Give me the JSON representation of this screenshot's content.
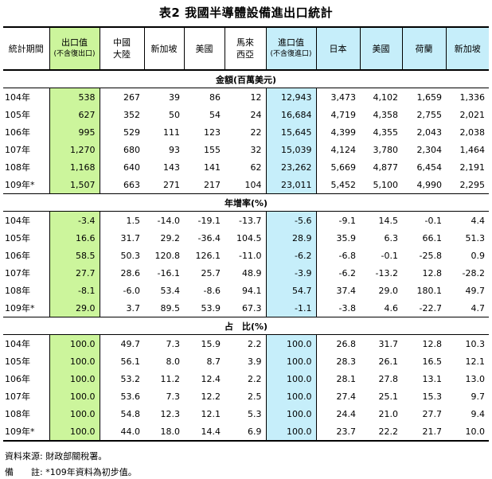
{
  "title": "表2  我國半導體設備進出口統計",
  "header": {
    "period": "統計期間",
    "export_value": "出口值",
    "export_note": "(不含復出口)",
    "export_destinations": [
      "中國大陸",
      "新加坡",
      "美國",
      "馬來西亞"
    ],
    "import_value": "進口值",
    "import_note": "(不含復進口)",
    "import_origins": [
      "日本",
      "美國",
      "荷蘭",
      "新加坡"
    ]
  },
  "sections": [
    {
      "title": "金額(百萬美元)",
      "rows": [
        {
          "period": "104年",
          "values": [
            "538",
            "267",
            "39",
            "86",
            "12",
            "12,943",
            "3,473",
            "4,102",
            "1,659",
            "1,336"
          ]
        },
        {
          "period": "105年",
          "values": [
            "627",
            "352",
            "50",
            "54",
            "24",
            "16,684",
            "4,719",
            "4,358",
            "2,755",
            "2,021"
          ]
        },
        {
          "period": "106年",
          "values": [
            "995",
            "529",
            "111",
            "123",
            "22",
            "15,645",
            "4,399",
            "4,355",
            "2,043",
            "2,038"
          ]
        },
        {
          "period": "107年",
          "values": [
            "1,270",
            "680",
            "93",
            "155",
            "32",
            "15,039",
            "4,124",
            "3,780",
            "2,304",
            "1,464"
          ]
        },
        {
          "period": "108年",
          "values": [
            "1,168",
            "640",
            "143",
            "141",
            "62",
            "23,262",
            "5,669",
            "4,877",
            "6,454",
            "2,191"
          ]
        },
        {
          "period": "109年*",
          "values": [
            "1,507",
            "663",
            "271",
            "217",
            "104",
            "23,011",
            "5,452",
            "5,100",
            "4,990",
            "2,295"
          ]
        }
      ]
    },
    {
      "title": "年增率(%)",
      "rows": [
        {
          "period": "104年",
          "values": [
            "-3.4",
            "1.5",
            "-14.0",
            "-19.1",
            "-13.7",
            "-5.6",
            "-9.1",
            "14.5",
            "-0.1",
            "4.4"
          ]
        },
        {
          "period": "105年",
          "values": [
            "16.6",
            "31.7",
            "29.2",
            "-36.4",
            "104.5",
            "28.9",
            "35.9",
            "6.3",
            "66.1",
            "51.3"
          ]
        },
        {
          "period": "106年",
          "values": [
            "58.5",
            "50.3",
            "120.8",
            "126.1",
            "-11.0",
            "-6.2",
            "-6.8",
            "-0.1",
            "-25.8",
            "0.9"
          ]
        },
        {
          "period": "107年",
          "values": [
            "27.7",
            "28.6",
            "-16.1",
            "25.7",
            "48.9",
            "-3.9",
            "-6.2",
            "-13.2",
            "12.8",
            "-28.2"
          ]
        },
        {
          "period": "108年",
          "values": [
            "-8.1",
            "-6.0",
            "53.4",
            "-8.6",
            "94.1",
            "54.7",
            "37.4",
            "29.0",
            "180.1",
            "49.7"
          ]
        },
        {
          "period": "109年*",
          "values": [
            "29.0",
            "3.7",
            "89.5",
            "53.9",
            "67.3",
            "-1.1",
            "-3.8",
            "4.6",
            "-22.7",
            "4.7"
          ]
        }
      ]
    },
    {
      "title": "占　比(%)",
      "rows": [
        {
          "period": "104年",
          "values": [
            "100.0",
            "49.7",
            "7.3",
            "15.9",
            "2.2",
            "100.0",
            "26.8",
            "31.7",
            "12.8",
            "10.3"
          ]
        },
        {
          "period": "105年",
          "values": [
            "100.0",
            "56.1",
            "8.0",
            "8.7",
            "3.9",
            "100.0",
            "28.3",
            "26.1",
            "16.5",
            "12.1"
          ]
        },
        {
          "period": "106年",
          "values": [
            "100.0",
            "53.2",
            "11.2",
            "12.4",
            "2.2",
            "100.0",
            "28.1",
            "27.8",
            "13.1",
            "13.0"
          ]
        },
        {
          "period": "107年",
          "values": [
            "100.0",
            "53.6",
            "7.3",
            "12.2",
            "2.5",
            "100.0",
            "27.4",
            "25.1",
            "15.3",
            "9.7"
          ]
        },
        {
          "period": "108年",
          "values": [
            "100.0",
            "54.8",
            "12.3",
            "12.1",
            "5.3",
            "100.0",
            "24.4",
            "21.0",
            "27.7",
            "9.4"
          ]
        },
        {
          "period": "109年*",
          "values": [
            "100.0",
            "44.0",
            "18.0",
            "14.4",
            "6.9",
            "100.0",
            "23.7",
            "22.2",
            "21.7",
            "10.0"
          ]
        }
      ]
    }
  ],
  "footnotes": {
    "source": "資料來源: 財政部關稅署。",
    "note_label": "備　　註:",
    "note_text": "*109年資料為初步值。"
  }
}
